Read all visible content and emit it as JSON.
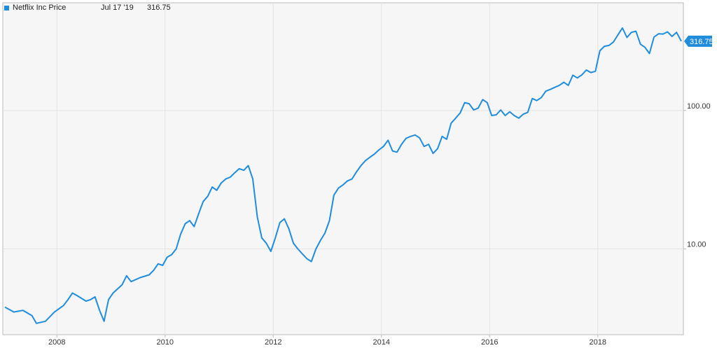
{
  "colors": {
    "series": "#1f8ddc",
    "plot_background": "#f6f6f6",
    "grid": "#e3e3e3",
    "border": "#b9b9b9"
  },
  "legend": {
    "name": "Netflix Inc Price",
    "date": "Jul 17 '19",
    "value": "316.75"
  },
  "last_value_label": "316.75",
  "chart_data": {
    "type": "line",
    "title": "",
    "xlabel": "",
    "ylabel": "",
    "y_scale": "log",
    "ylim": [
      2.4,
      600
    ],
    "xlim": [
      "2007-01-01",
      "2019-07-31"
    ],
    "x_ticks": [
      "2008",
      "2010",
      "2012",
      "2014",
      "2016",
      "2018"
    ],
    "y_ticks": [
      {
        "value": 10,
        "label": "10.00"
      },
      {
        "value": 100,
        "label": "100.00"
      }
    ],
    "grid": true,
    "legend_position": "top-left",
    "series": [
      {
        "name": "Netflix Inc Price",
        "points": [
          [
            "2007-01",
            3.8
          ],
          [
            "2007-03",
            3.5
          ],
          [
            "2007-05",
            3.6
          ],
          [
            "2007-07",
            3.3
          ],
          [
            "2007-08",
            2.9
          ],
          [
            "2007-10",
            3.0
          ],
          [
            "2007-12",
            3.5
          ],
          [
            "2008-02",
            3.9
          ],
          [
            "2008-03",
            4.3
          ],
          [
            "2008-04",
            4.8
          ],
          [
            "2008-05",
            4.6
          ],
          [
            "2008-07",
            4.2
          ],
          [
            "2008-08",
            4.3
          ],
          [
            "2008-09",
            4.5
          ],
          [
            "2008-10",
            3.6
          ],
          [
            "2008-11",
            3.0
          ],
          [
            "2008-12",
            4.3
          ],
          [
            "2009-01",
            4.8
          ],
          [
            "2009-03",
            5.5
          ],
          [
            "2009-04",
            6.4
          ],
          [
            "2009-05",
            5.8
          ],
          [
            "2009-07",
            6.2
          ],
          [
            "2009-09",
            6.5
          ],
          [
            "2009-10",
            7.0
          ],
          [
            "2009-11",
            7.8
          ],
          [
            "2009-12",
            7.6
          ],
          [
            "2010-01",
            8.7
          ],
          [
            "2010-02",
            9.1
          ],
          [
            "2010-03",
            10.0
          ],
          [
            "2010-04",
            12.8
          ],
          [
            "2010-05",
            15.2
          ],
          [
            "2010-06",
            16.0
          ],
          [
            "2010-07",
            14.5
          ],
          [
            "2010-08",
            18.0
          ],
          [
            "2010-09",
            22.0
          ],
          [
            "2010-10",
            24.0
          ],
          [
            "2010-11",
            28.0
          ],
          [
            "2010-12",
            26.5
          ],
          [
            "2011-01",
            30.0
          ],
          [
            "2011-02",
            32.0
          ],
          [
            "2011-03",
            33.0
          ],
          [
            "2011-04",
            35.5
          ],
          [
            "2011-05",
            38.0
          ],
          [
            "2011-06",
            37.0
          ],
          [
            "2011-07",
            40.0
          ],
          [
            "2011-08",
            32.0
          ],
          [
            "2011-09",
            17.0
          ],
          [
            "2011-10",
            12.0
          ],
          [
            "2011-11",
            11.0
          ],
          [
            "2011-12",
            9.6
          ],
          [
            "2012-01",
            12.0
          ],
          [
            "2012-02",
            15.5
          ],
          [
            "2012-03",
            16.5
          ],
          [
            "2012-04",
            14.0
          ],
          [
            "2012-05",
            11.0
          ],
          [
            "2012-06",
            10.0
          ],
          [
            "2012-07",
            9.2
          ],
          [
            "2012-08",
            8.5
          ],
          [
            "2012-09",
            8.1
          ],
          [
            "2012-10",
            10.0
          ],
          [
            "2012-11",
            11.5
          ],
          [
            "2012-12",
            13.0
          ],
          [
            "2013-01",
            16.0
          ],
          [
            "2013-02",
            24.5
          ],
          [
            "2013-03",
            27.5
          ],
          [
            "2013-04",
            29.0
          ],
          [
            "2013-05",
            31.0
          ],
          [
            "2013-06",
            32.0
          ],
          [
            "2013-07",
            36.0
          ],
          [
            "2013-08",
            40.0
          ],
          [
            "2013-09",
            43.5
          ],
          [
            "2013-10",
            46.0
          ],
          [
            "2013-11",
            48.5
          ],
          [
            "2013-12",
            52.0
          ],
          [
            "2014-01",
            55.0
          ],
          [
            "2014-02",
            61.0
          ],
          [
            "2014-03",
            51.0
          ],
          [
            "2014-04",
            50.0
          ],
          [
            "2014-05",
            57.0
          ],
          [
            "2014-06",
            63.0
          ],
          [
            "2014-07",
            65.0
          ],
          [
            "2014-08",
            66.5
          ],
          [
            "2014-09",
            63.5
          ],
          [
            "2014-10",
            55.0
          ],
          [
            "2014-11",
            57.0
          ],
          [
            "2014-12",
            49.0
          ],
          [
            "2015-01",
            53.0
          ],
          [
            "2015-02",
            65.0
          ],
          [
            "2015-03",
            62.0
          ],
          [
            "2015-04",
            81.0
          ],
          [
            "2015-05",
            88.0
          ],
          [
            "2015-06",
            96.0
          ],
          [
            "2015-07",
            114.0
          ],
          [
            "2015-08",
            112.0
          ],
          [
            "2015-09",
            101.0
          ],
          [
            "2015-10",
            104.0
          ],
          [
            "2015-11",
            120.0
          ],
          [
            "2015-12",
            114.0
          ],
          [
            "2016-01",
            92.0
          ],
          [
            "2016-02",
            93.0
          ],
          [
            "2016-03",
            101.0
          ],
          [
            "2016-04",
            92.0
          ],
          [
            "2016-05",
            98.0
          ],
          [
            "2016-06",
            92.0
          ],
          [
            "2016-07",
            88.0
          ],
          [
            "2016-08",
            94.0
          ],
          [
            "2016-09",
            97.0
          ],
          [
            "2016-10",
            122.0
          ],
          [
            "2016-11",
            118.0
          ],
          [
            "2016-12",
            124.0
          ],
          [
            "2017-01",
            138.0
          ],
          [
            "2017-02",
            142.0
          ],
          [
            "2017-03",
            147.0
          ],
          [
            "2017-04",
            152.0
          ],
          [
            "2017-05",
            160.0
          ],
          [
            "2017-06",
            152.0
          ],
          [
            "2017-07",
            180.0
          ],
          [
            "2017-08",
            172.0
          ],
          [
            "2017-09",
            181.0
          ],
          [
            "2017-10",
            196.0
          ],
          [
            "2017-11",
            188.0
          ],
          [
            "2017-12",
            192.0
          ],
          [
            "2018-01",
            270.0
          ],
          [
            "2018-02",
            291.0
          ],
          [
            "2018-03",
            295.0
          ],
          [
            "2018-04",
            312.0
          ],
          [
            "2018-05",
            352.0
          ],
          [
            "2018-06",
            395.0
          ],
          [
            "2018-07",
            337.0
          ],
          [
            "2018-08",
            367.0
          ],
          [
            "2018-09",
            374.0
          ],
          [
            "2018-10",
            301.0
          ],
          [
            "2018-11",
            286.0
          ],
          [
            "2018-12",
            258.0
          ],
          [
            "2019-01",
            339.0
          ],
          [
            "2019-02",
            358.0
          ],
          [
            "2019-03",
            357.0
          ],
          [
            "2019-04",
            370.0
          ],
          [
            "2019-05",
            343.0
          ],
          [
            "2019-06",
            367.0
          ],
          [
            "2019-07-17",
            316.75
          ]
        ]
      }
    ]
  }
}
